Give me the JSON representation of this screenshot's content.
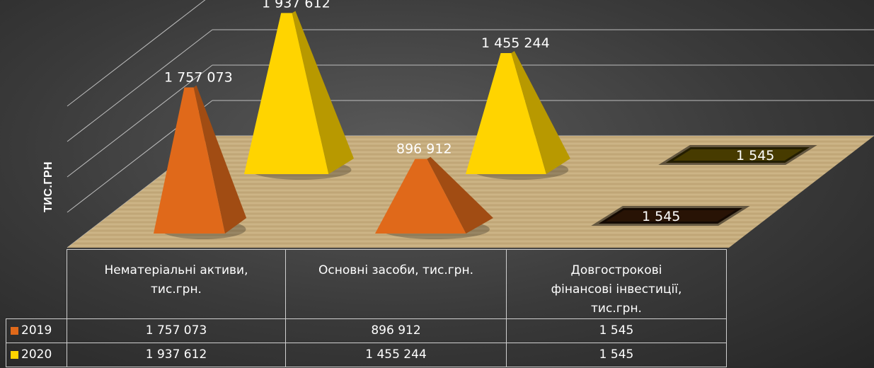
{
  "chart_data": {
    "type": "bar",
    "style": "3d-pyramid",
    "ylabel": "ТИС.ГРН",
    "categories": [
      "Нематеріальні активи, тис.грн.",
      "Основні засоби, тис.грн.",
      "Довгострокові фінансові інвестиції, тис.грн."
    ],
    "category_lines": [
      [
        "Нематеріальні активи,",
        "тис.грн."
      ],
      [
        "Основні засоби, тис.грн."
      ],
      [
        "Довгострокові",
        "фінансові інвестиції,",
        "тис.грн."
      ]
    ],
    "series": [
      {
        "name": "2019",
        "values": [
          1757073,
          896912,
          1545
        ],
        "labels": [
          "1 757 073",
          "896 912",
          "1 545"
        ],
        "color": "#e0691a"
      },
      {
        "name": "2020",
        "values": [
          1937612,
          1455244,
          1545
        ],
        "labels": [
          "1 937 612",
          "1 455 244",
          "1 545"
        ],
        "color": "#ffd400"
      }
    ],
    "ylim": [
      0,
      2000000
    ],
    "grid": true,
    "legend": "data-table"
  },
  "table": {
    "rows": [
      {
        "series": "2019",
        "color": "#e0691a",
        "values": [
          "1 757 073",
          "896 912",
          "1 545"
        ]
      },
      {
        "series": "2020",
        "color": "#ffd400",
        "values": [
          "1 937 612",
          "1 455 244",
          "1 545"
        ]
      }
    ]
  }
}
